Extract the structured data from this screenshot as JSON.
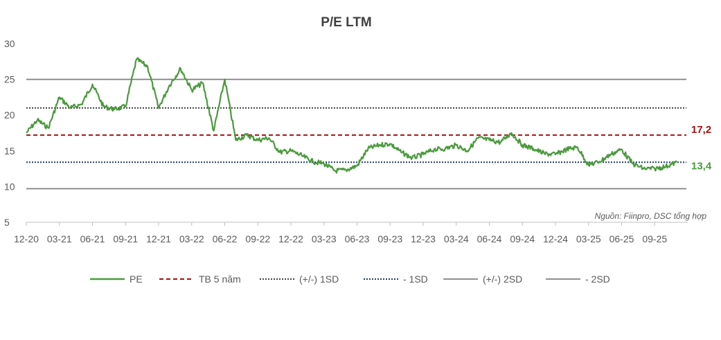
{
  "chart_data": {
    "type": "line",
    "title": "P/E LTM",
    "xlabel": "",
    "ylabel": "",
    "ylim": [
      5,
      30
    ],
    "yticks": [
      5,
      10,
      15,
      20,
      25,
      30
    ],
    "x_tick_labels": [
      "12-20",
      "03-21",
      "06-21",
      "09-21",
      "12-21",
      "03-22",
      "06-22",
      "09-22",
      "12-22",
      "03-23",
      "06-23",
      "09-23",
      "12-23",
      "03-24",
      "06-24",
      "09-24",
      "12-24",
      "03-25",
      "06-25",
      "09-25"
    ],
    "grid": false,
    "legend_position": "bottom",
    "source_note": "Nguồn: Fiinpro, DSC tổng hợp",
    "series": [
      {
        "name": "PE",
        "color": "#4a9a3c",
        "points": [
          [
            "12-20",
            17.5
          ],
          [
            "01-21",
            19.3
          ],
          [
            "02-21",
            18.2
          ],
          [
            "03-21",
            22.5
          ],
          [
            "04-21",
            21.0
          ],
          [
            "05-21",
            21.5
          ],
          [
            "06-21",
            24.3
          ],
          [
            "07-21",
            21.2
          ],
          [
            "08-21",
            20.8
          ],
          [
            "09-21",
            21.2
          ],
          [
            "10-21",
            27.8
          ],
          [
            "11-21",
            26.8
          ],
          [
            "12-21",
            21.0
          ],
          [
            "01-22",
            24.2
          ],
          [
            "02-22",
            26.5
          ],
          [
            "03-22",
            23.5
          ],
          [
            "04-22",
            24.5
          ],
          [
            "05-22",
            17.8
          ],
          [
            "06-22",
            25.0
          ],
          [
            "07-22",
            16.5
          ],
          [
            "08-22",
            17.2
          ],
          [
            "09-22",
            16.5
          ],
          [
            "10-22",
            16.8
          ],
          [
            "11-22",
            14.8
          ],
          [
            "12-22",
            15.0
          ],
          [
            "01-23",
            14.3
          ],
          [
            "02-23",
            13.5
          ],
          [
            "03-23",
            13.2
          ],
          [
            "04-23",
            12.2
          ],
          [
            "05-23",
            12.3
          ],
          [
            "06-23",
            12.9
          ],
          [
            "07-23",
            15.3
          ],
          [
            "08-23",
            15.8
          ],
          [
            "09-23",
            16.0
          ],
          [
            "10-23",
            14.8
          ],
          [
            "11-23",
            14.0
          ],
          [
            "12-23",
            14.5
          ],
          [
            "01-24",
            15.2
          ],
          [
            "02-24",
            15.3
          ],
          [
            "03-24",
            15.8
          ],
          [
            "04-24",
            15.0
          ],
          [
            "05-24",
            16.8
          ],
          [
            "06-24",
            16.5
          ],
          [
            "07-24",
            16.2
          ],
          [
            "08-24",
            17.5
          ],
          [
            "09-24",
            15.8
          ],
          [
            "10-24",
            15.3
          ],
          [
            "11-24",
            14.6
          ],
          [
            "12-24",
            14.5
          ],
          [
            "01-25",
            15.2
          ],
          [
            "02-25",
            15.5
          ],
          [
            "03-25",
            13.0
          ],
          [
            "04-25",
            13.5
          ],
          [
            "05-25",
            14.5
          ],
          [
            "06-25",
            15.2
          ],
          [
            "07-25",
            13.2
          ],
          [
            "08-25",
            12.5
          ],
          [
            "09-25",
            12.5
          ],
          [
            "10-25",
            12.8
          ],
          [
            "11-25",
            13.4
          ]
        ]
      },
      {
        "name": "TB 5 năm",
        "value": 17.2,
        "color": "#a50f0f",
        "style": "dashed"
      },
      {
        "name": "(+/-) 1SD",
        "value": 21.0,
        "color": "#404040",
        "style": "dotted"
      },
      {
        "name": "- 1SD",
        "value": 13.4,
        "color": "#1f3864",
        "style": "dotted"
      },
      {
        "name": "(+/-) 2SD",
        "value": 25.0,
        "color": "#7f7f7f",
        "style": "solid"
      },
      {
        "name": "- 2SD",
        "value": 9.7,
        "color": "#7f7f7f",
        "style": "solid"
      }
    ],
    "annotations": [
      {
        "text": "17,2",
        "series": "TB 5 năm",
        "color": "#a50f0f"
      },
      {
        "text": "13,4",
        "series": "PE",
        "color": "#4a9a3c"
      }
    ]
  }
}
